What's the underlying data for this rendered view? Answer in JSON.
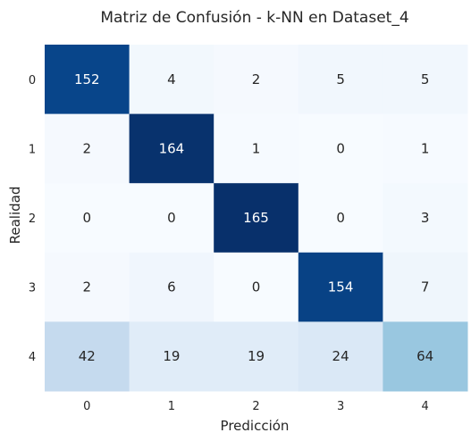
{
  "chart_data": {
    "type": "heatmap",
    "title": "Matriz de Confusión - k-NN en Dataset_4",
    "xlabel": "Predicción",
    "ylabel": "Realidad",
    "x_categories": [
      "0",
      "1",
      "2",
      "3",
      "4"
    ],
    "y_categories": [
      "0",
      "1",
      "2",
      "3",
      "4"
    ],
    "values": [
      [
        152,
        4,
        2,
        5,
        5
      ],
      [
        2,
        164,
        1,
        0,
        1
      ],
      [
        0,
        0,
        165,
        0,
        3
      ],
      [
        2,
        6,
        0,
        154,
        7
      ],
      [
        42,
        19,
        19,
        24,
        64
      ]
    ],
    "colormap": "Blues",
    "vmin": 0,
    "vmax": 165,
    "colorbar": false,
    "grid": false
  }
}
